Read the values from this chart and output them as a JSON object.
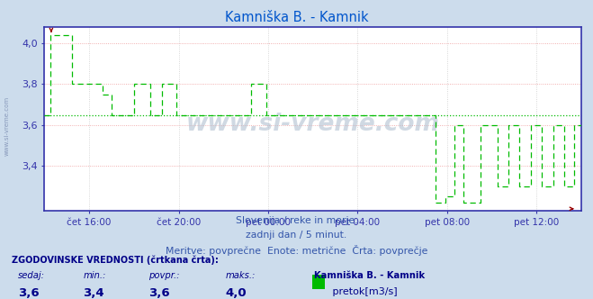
{
  "title": "Kamniška B. - Kamnik",
  "title_color": "#0055cc",
  "bg_color": "#ccdcec",
  "plot_bg_color": "#ffffff",
  "grid_color": "#ee9999",
  "grid_color_v": "#cccccc",
  "line_color": "#00bb00",
  "axis_color": "#3333aa",
  "text_color": "#3355aa",
  "label_color": "#000080",
  "xlabel_ticks": [
    "čet 16:00",
    "čet 20:00",
    "pet 00:00",
    "pet 04:00",
    "pet 08:00",
    "pet 12:00"
  ],
  "tick_positions": [
    2,
    6,
    10,
    14,
    18,
    22
  ],
  "xlim": [
    0,
    24
  ],
  "ylim": [
    3.18,
    4.08
  ],
  "yticks": [
    3.4,
    3.6,
    3.8,
    4.0
  ],
  "avg_line": 3.648,
  "subtitle1": "Slovenija / reke in morje.",
  "subtitle2": "zadnji dan / 5 minut.",
  "subtitle3": "Meritve: povprečne  Enote: metrične  Črta: povprečje",
  "footer_label": "ZGODOVINSKE VREDNOSTI (črtkana črta):",
  "col_headers": [
    "sedaj:",
    "min.:",
    "povpr.:",
    "maks.:"
  ],
  "col_values": [
    "3,6",
    "3,4",
    "3,6",
    "4,0"
  ],
  "series_name": "Kamniška B. - Kamnik",
  "legend_label": " pretok[m3/s]",
  "watermark": "www.si-vreme.com",
  "left_watermark": "www.si-vreme.com",
  "arrow_color": "#990000",
  "legend_color": "#00bb00"
}
